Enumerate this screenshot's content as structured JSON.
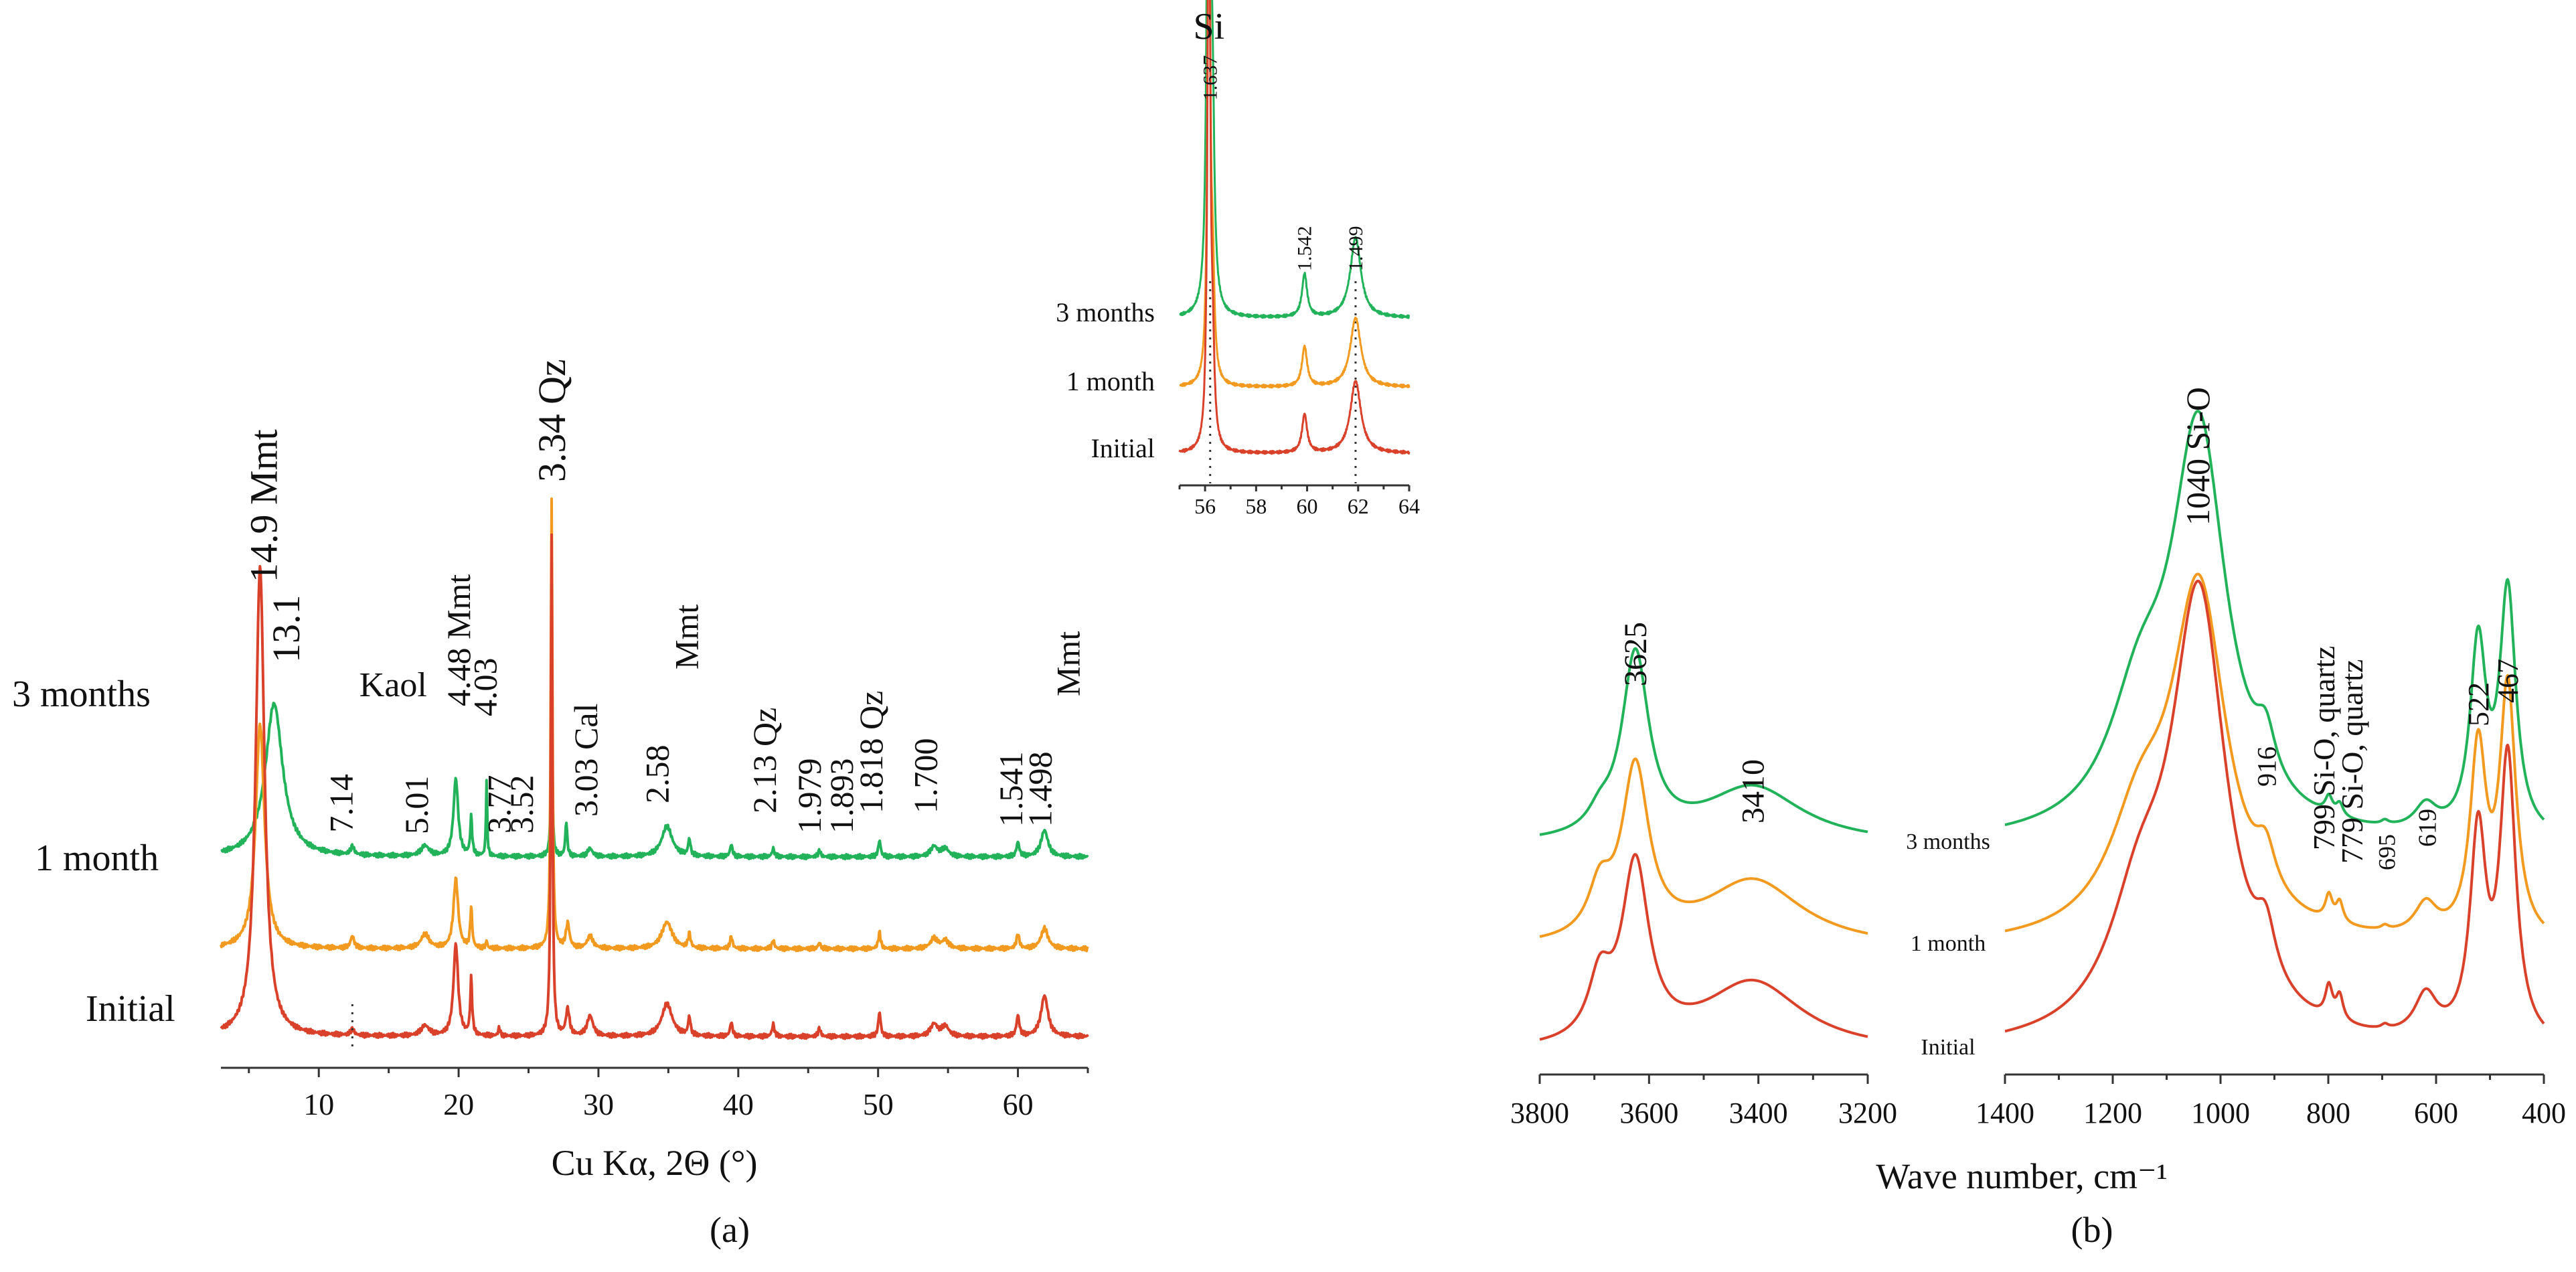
{
  "figure": {
    "panel_a_label": "(a)",
    "panel_b_label": "(b)",
    "colors": {
      "three_months": "#22b35a",
      "one_month": "#f29a1f",
      "initial": "#d9412b",
      "axis": "#333333"
    }
  },
  "chart_data": [
    {
      "type": "line",
      "id": "xrd",
      "title": "",
      "xlabel": "Cu Kα, 2Θ (°)",
      "ylabel": "",
      "xlim": [
        3,
        65
      ],
      "xticks": [
        10,
        20,
        30,
        40,
        50,
        60
      ],
      "grid": false,
      "series": [
        {
          "name": "3 months",
          "baseline": 1.0,
          "scale": 1.0,
          "peaks": [
            [
              6.8,
              0.75,
              0.75
            ],
            [
              12.4,
              0.04,
              0.15
            ],
            [
              17.6,
              0.05,
              0.35
            ],
            [
              19.8,
              0.38,
              0.2
            ],
            [
              20.9,
              0.19,
              0.08
            ],
            [
              22.0,
              0.37,
              0.05
            ],
            [
              26.65,
              0.64,
              0.07
            ],
            [
              27.7,
              0.17,
              0.08
            ],
            [
              29.4,
              0.04,
              0.2
            ],
            [
              34.9,
              0.15,
              0.45
            ],
            [
              36.5,
              0.08,
              0.1
            ],
            [
              39.5,
              0.06,
              0.1
            ],
            [
              42.5,
              0.04,
              0.1
            ],
            [
              45.8,
              0.03,
              0.1
            ],
            [
              50.1,
              0.08,
              0.1
            ],
            [
              54.0,
              0.05,
              0.3
            ],
            [
              54.8,
              0.04,
              0.3
            ],
            [
              60.0,
              0.07,
              0.12
            ],
            [
              61.9,
              0.13,
              0.3
            ]
          ]
        },
        {
          "name": "1 month",
          "baseline": 0.55,
          "scale": 1.0,
          "peaks": [
            [
              5.8,
              1.1,
              0.38
            ],
            [
              12.4,
              0.06,
              0.15
            ],
            [
              17.6,
              0.07,
              0.35
            ],
            [
              19.8,
              0.34,
              0.2
            ],
            [
              20.9,
              0.2,
              0.08
            ],
            [
              22.0,
              0.04,
              0.05
            ],
            [
              26.65,
              2.2,
              0.07
            ],
            [
              27.8,
              0.12,
              0.15
            ],
            [
              29.4,
              0.06,
              0.25
            ],
            [
              34.9,
              0.13,
              0.45
            ],
            [
              36.5,
              0.07,
              0.1
            ],
            [
              39.5,
              0.06,
              0.1
            ],
            [
              42.5,
              0.04,
              0.1
            ],
            [
              45.8,
              0.03,
              0.1
            ],
            [
              50.1,
              0.08,
              0.1
            ],
            [
              54.0,
              0.05,
              0.3
            ],
            [
              54.8,
              0.04,
              0.3
            ],
            [
              60.0,
              0.07,
              0.12
            ],
            [
              61.9,
              0.1,
              0.3
            ]
          ]
        },
        {
          "name": "Initial",
          "baseline": 0.12,
          "scale": 1.0,
          "peaks": [
            [
              5.8,
              2.3,
              0.38
            ],
            [
              12.4,
              0.03,
              0.15
            ],
            [
              17.6,
              0.05,
              0.35
            ],
            [
              19.8,
              0.45,
              0.2
            ],
            [
              20.9,
              0.28,
              0.08
            ],
            [
              22.9,
              0.04,
              0.08
            ],
            [
              26.65,
              2.45,
              0.07
            ],
            [
              27.8,
              0.13,
              0.15
            ],
            [
              29.4,
              0.1,
              0.25
            ],
            [
              34.9,
              0.16,
              0.45
            ],
            [
              36.5,
              0.09,
              0.1
            ],
            [
              39.5,
              0.07,
              0.1
            ],
            [
              42.5,
              0.06,
              0.1
            ],
            [
              45.8,
              0.04,
              0.1
            ],
            [
              50.1,
              0.12,
              0.1
            ],
            [
              54.0,
              0.06,
              0.3
            ],
            [
              54.8,
              0.05,
              0.3
            ],
            [
              60.0,
              0.1,
              0.12
            ],
            [
              61.9,
              0.2,
              0.3
            ]
          ]
        }
      ],
      "series_labels": [
        "3 months",
        "1 month",
        "Initial"
      ],
      "annotations": [
        {
          "text": "14.9 Mmt",
          "x": 7.0,
          "size": "lg"
        },
        {
          "text": "13.1",
          "x": 8.6,
          "size": "lg"
        },
        {
          "text": "7.14",
          "x": 12.4
        },
        {
          "text": "Kaol",
          "x": 12.9,
          "horizontal": true
        },
        {
          "text": "5.01",
          "x": 17.8
        },
        {
          "text": "4.48 Mmt",
          "x": 20.8
        },
        {
          "text": "4.03",
          "x": 22.7
        },
        {
          "text": "3.77",
          "x": 23.7
        },
        {
          "text": "3.52",
          "x": 25.3
        },
        {
          "text": "3.34 Qz",
          "x": 27.6,
          "size": "lg"
        },
        {
          "text": "3.03 Cal",
          "x": 29.9
        },
        {
          "text": "2.58",
          "x": 35.0
        },
        {
          "text": "Mmt",
          "x": 37.1
        },
        {
          "text": "2.13 Qz",
          "x": 42.7
        },
        {
          "text": "1.979",
          "x": 45.9
        },
        {
          "text": "1.893",
          "x": 48.2
        },
        {
          "text": "1.818 Qz",
          "x": 50.3
        },
        {
          "text": "1.700",
          "x": 54.2
        },
        {
          "text": "1.541",
          "x": 60.3
        },
        {
          "text": "1.498",
          "x": 62.4
        },
        {
          "text": "Mmt",
          "x": 64.4
        }
      ]
    },
    {
      "type": "line",
      "id": "xrd-inset",
      "title": "Si",
      "xlim": [
        55,
        64
      ],
      "xticks": [
        56,
        58,
        60,
        62,
        64
      ],
      "series": [
        {
          "name": "3 months",
          "baseline": 1.0,
          "peaks": [
            [
              56.15,
              6.8,
              0.06
            ],
            [
              56.3,
              0.9,
              0.08
            ],
            [
              59.9,
              0.28,
              0.12
            ],
            [
              61.9,
              0.52,
              0.25
            ]
          ]
        },
        {
          "name": "1 month",
          "baseline": 0.55,
          "peaks": [
            [
              56.15,
              3.7,
              0.06
            ],
            [
              56.3,
              0.6,
              0.08
            ],
            [
              59.9,
              0.26,
              0.12
            ],
            [
              61.9,
              0.45,
              0.25
            ]
          ]
        },
        {
          "name": "Initial",
          "baseline": 0.12,
          "peaks": [
            [
              56.15,
              4.2,
              0.06
            ],
            [
              56.3,
              0.5,
              0.08
            ],
            [
              59.9,
              0.25,
              0.12
            ],
            [
              61.9,
              0.47,
              0.25
            ]
          ]
        }
      ],
      "series_labels": [
        "3 months",
        "1 month",
        "Initial"
      ],
      "annotations": [
        {
          "text": "1.637",
          "x": 56.2
        },
        {
          "text": "1.542",
          "x": 59.9
        },
        {
          "text": "1.499",
          "x": 61.9
        }
      ],
      "markers": [
        56.2,
        61.9
      ]
    },
    {
      "type": "line",
      "id": "ir-high",
      "xlabel": "",
      "xlim": [
        3800,
        3200
      ],
      "xticks": [
        3800,
        3600,
        3400,
        3200
      ],
      "series": [
        {
          "name": "3 months",
          "baseline": 1.0,
          "peaks": [
            [
              3625,
              0.88,
              30
            ],
            [
              3410,
              0.27,
              110
            ],
            [
              3690,
              0.08,
              25
            ]
          ]
        },
        {
          "name": "1 month",
          "baseline": 0.5,
          "peaks": [
            [
              3625,
              0.82,
              30
            ],
            [
              3410,
              0.32,
              110
            ],
            [
              3690,
              0.22,
              25
            ]
          ]
        },
        {
          "name": "Initial",
          "baseline": 0.0,
          "peaks": [
            [
              3625,
              0.85,
              30
            ],
            [
              3410,
              0.33,
              110
            ],
            [
              3690,
              0.28,
              25
            ]
          ]
        }
      ],
      "series_labels": [
        "3 months",
        "1 month",
        "Initial"
      ],
      "annotations": [
        {
          "text": "3625",
          "x": 3625
        },
        {
          "text": "3410",
          "x": 3410
        }
      ]
    },
    {
      "type": "line",
      "id": "ir-low",
      "xlabel": "Wave number, cm⁻¹",
      "xlim": [
        1400,
        400
      ],
      "xticks": [
        1400,
        1200,
        1000,
        800,
        600,
        400
      ],
      "series": [
        {
          "name": "3 months",
          "baseline": 1.0,
          "peaks": [
            [
              1040,
              1.92,
              62
            ],
            [
              1150,
              0.55,
              70
            ],
            [
              916,
              0.22,
              22
            ],
            [
              799,
              0.08,
              8
            ],
            [
              779,
              0.06,
              8
            ],
            [
              695,
              0.02,
              8
            ],
            [
              619,
              0.12,
              25
            ],
            [
              522,
              0.9,
              18
            ],
            [
              467,
              1.16,
              18
            ]
          ]
        },
        {
          "name": "1 month",
          "baseline": 0.5,
          "peaks": [
            [
              1040,
              1.65,
              62
            ],
            [
              1150,
              0.5,
              70
            ],
            [
              916,
              0.2,
              22
            ],
            [
              799,
              0.12,
              8
            ],
            [
              779,
              0.1,
              8
            ],
            [
              695,
              0.02,
              8
            ],
            [
              619,
              0.15,
              25
            ],
            [
              522,
              0.9,
              18
            ],
            [
              467,
              1.2,
              18
            ]
          ]
        },
        {
          "name": "Initial",
          "baseline": 0.0,
          "peaks": [
            [
              1040,
              2.1,
              62
            ],
            [
              1150,
              0.55,
              70
            ],
            [
              916,
              0.25,
              22
            ],
            [
              799,
              0.15,
              8
            ],
            [
              779,
              0.12,
              8
            ],
            [
              695,
              0.02,
              8
            ],
            [
              619,
              0.2,
              25
            ],
            [
              522,
              0.98,
              18
            ],
            [
              467,
              1.35,
              18
            ]
          ]
        }
      ],
      "series_labels": [
        "3 months",
        "1 month",
        "Initial"
      ],
      "annotations": [
        {
          "text": "1040 Si-O",
          "x": 1040
        },
        {
          "text": "916",
          "x": 916
        },
        {
          "text": "799 Si-O, quartz",
          "x": 799
        },
        {
          "text": "779 Si-O, quartz",
          "x": 779
        },
        {
          "text": "695",
          "x": 695
        },
        {
          "text": "619",
          "x": 619
        },
        {
          "text": "522",
          "x": 522
        },
        {
          "text": "467",
          "x": 467
        }
      ]
    }
  ]
}
